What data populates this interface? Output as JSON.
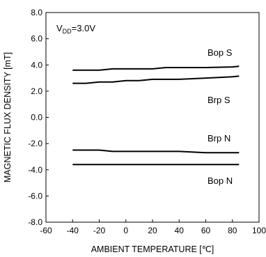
{
  "chart_data": {
    "type": "line",
    "note_main": "V",
    "note_sub": "DD",
    "note_rest": "=3.0V",
    "xlabel": "AMBIENT TEMPERATURE [℃]",
    "ylabel": "MAGNETIC FLUX DENSITY [mT]",
    "xlim": [
      -60,
      100
    ],
    "ylim": [
      -8,
      8
    ],
    "x_ticks": [
      -60,
      -40,
      -20,
      0,
      20,
      40,
      60,
      80,
      100
    ],
    "x_tick_labels": [
      "-60",
      "-40",
      "-20",
      "0",
      "20",
      "40",
      "60",
      "80",
      "100"
    ],
    "y_ticks": [
      8,
      6,
      4,
      2,
      0,
      -2,
      -4,
      -6,
      -8
    ],
    "y_tick_labels": [
      "8.0",
      "6.0",
      "4.0",
      "2.0",
      "0.0",
      "-2.0",
      "-4.0",
      "-6.0",
      "-8.0"
    ],
    "grid": false,
    "series": [
      {
        "name": "Bop S",
        "x": [
          -40,
          -20,
          -10,
          0,
          10,
          20,
          30,
          40,
          60,
          80,
          85
        ],
        "y": [
          3.6,
          3.6,
          3.7,
          3.7,
          3.7,
          3.7,
          3.8,
          3.8,
          3.8,
          3.85,
          3.9
        ]
      },
      {
        "name": "Brp S",
        "x": [
          -40,
          -30,
          -20,
          -10,
          0,
          10,
          20,
          30,
          40,
          60,
          80,
          85
        ],
        "y": [
          2.6,
          2.6,
          2.7,
          2.7,
          2.8,
          2.8,
          2.9,
          2.9,
          2.9,
          3.0,
          3.1,
          3.15
        ]
      },
      {
        "name": "Brp N",
        "x": [
          -40,
          -20,
          -10,
          0,
          20,
          40,
          60,
          80,
          85
        ],
        "y": [
          -2.5,
          -2.5,
          -2.6,
          -2.6,
          -2.6,
          -2.6,
          -2.7,
          -2.7,
          -2.7
        ]
      },
      {
        "name": "Bop N",
        "x": [
          -40,
          -20,
          0,
          20,
          40,
          60,
          80,
          85
        ],
        "y": [
          -3.6,
          -3.6,
          -3.6,
          -3.6,
          -3.6,
          -3.6,
          -3.6,
          -3.6
        ]
      }
    ]
  }
}
